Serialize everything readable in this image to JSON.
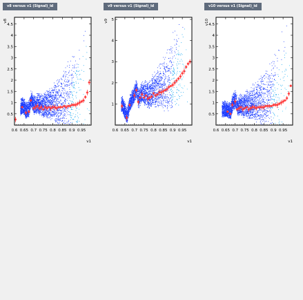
{
  "colors": {
    "background": "#f0f0f0",
    "title_bg": "#5f6b7c",
    "density_low": "#1b3cff",
    "density_mid": "#19a8f0",
    "density_high": "#2ec4ff",
    "profile_points": "#ff3b3b"
  },
  "chart_data": [
    {
      "type": "scatter",
      "title": "v8 versus v1 (Signal)_id",
      "xlabel": "v1",
      "ylabel": "v8",
      "xlim": [
        0.6,
        1.0
      ],
      "ylim": [
        0,
        4.8
      ],
      "xticks": [
        0.6,
        0.65,
        0.7,
        0.75,
        0.8,
        0.85,
        0.9,
        0.95
      ],
      "xtick_labels": [
        "0.6",
        "0.65",
        "0.7",
        "0.75",
        "0.8",
        "0.85",
        "0.9",
        "0.95"
      ],
      "yticks": [
        0.5,
        1,
        1.5,
        2,
        2.5,
        3,
        3.5,
        4,
        4.5
      ],
      "ytick_labels": [
        "0.5",
        "1",
        "1.5",
        "2",
        "2.5",
        "3",
        "3.5",
        "4",
        "4.5"
      ],
      "series": [
        {
          "kind": "profile",
          "x": [
            0.605,
            0.64,
            0.66,
            0.675,
            0.685,
            0.7,
            0.71,
            0.72,
            0.73,
            0.74,
            0.75,
            0.76,
            0.77,
            0.78,
            0.79,
            0.8,
            0.81,
            0.82,
            0.83,
            0.84,
            0.85,
            0.86,
            0.87,
            0.88,
            0.89,
            0.9,
            0.91,
            0.92,
            0.93,
            0.94,
            0.95,
            0.96,
            0.97,
            0.98,
            0.99
          ],
          "y": [
            0.25,
            0.8,
            0.55,
            0.6,
            1.1,
            0.75,
            0.8,
            0.85,
            0.75,
            0.8,
            0.7,
            0.8,
            0.75,
            0.8,
            0.75,
            0.8,
            0.8,
            0.75,
            0.8,
            0.8,
            0.8,
            0.85,
            0.8,
            0.85,
            0.85,
            0.9,
            0.9,
            0.9,
            0.95,
            1.0,
            1.05,
            1.1,
            1.25,
            1.45,
            1.9
          ]
        }
      ]
    },
    {
      "type": "scatter",
      "title": "v9 versus v1 (Signal)_id",
      "xlabel": "v1",
      "ylabel": "v9",
      "xlim": [
        0.6,
        1.0
      ],
      "ylim": [
        0,
        5.1
      ],
      "xticks": [
        0.6,
        0.65,
        0.7,
        0.75,
        0.8,
        0.85,
        0.9,
        0.95
      ],
      "xtick_labels": [
        "0.6",
        "0.65",
        "0.7",
        "0.75",
        "0.8",
        "0.85",
        "0.9",
        "0.95"
      ],
      "yticks": [
        1,
        2,
        3,
        4,
        5
      ],
      "ytick_labels": [
        "1",
        "2",
        "3",
        "4",
        "5"
      ],
      "series": [
        {
          "kind": "profile",
          "x": [
            0.635,
            0.66,
            0.675,
            0.7,
            0.71,
            0.72,
            0.73,
            0.74,
            0.75,
            0.76,
            0.77,
            0.78,
            0.79,
            0.8,
            0.81,
            0.82,
            0.83,
            0.84,
            0.85,
            0.86,
            0.87,
            0.88,
            0.89,
            0.9,
            0.91,
            0.92,
            0.93,
            0.94,
            0.95,
            0.96,
            0.97,
            0.98,
            0.99
          ],
          "y": [
            0.9,
            0.35,
            0.95,
            1.4,
            1.65,
            1.1,
            1.3,
            1.45,
            1.3,
            1.4,
            1.25,
            1.3,
            1.35,
            1.5,
            1.4,
            1.45,
            1.55,
            1.55,
            1.6,
            1.65,
            1.7,
            1.8,
            1.85,
            1.9,
            2.0,
            2.1,
            2.2,
            2.3,
            2.45,
            2.55,
            2.75,
            2.9,
            3.0
          ]
        }
      ]
    },
    {
      "type": "scatter",
      "title": "v10 versus v1 (Signal)_id",
      "xlabel": "v1",
      "ylabel": "v10",
      "xlim": [
        0.6,
        1.0
      ],
      "ylim": [
        0,
        4.8
      ],
      "xticks": [
        0.6,
        0.65,
        0.7,
        0.75,
        0.8,
        0.85,
        0.9,
        0.95
      ],
      "xtick_labels": [
        "0.6",
        "0.65",
        "0.7",
        "0.75",
        "0.8",
        "0.85",
        "0.9",
        "0.95"
      ],
      "yticks": [
        0.5,
        1,
        1.5,
        2,
        2.5,
        3,
        3.5,
        4,
        4.5
      ],
      "ytick_labels": [
        "0.5",
        "1",
        "1.5",
        "2",
        "2.5",
        "3",
        "3.5",
        "4",
        "4.5"
      ],
      "series": [
        {
          "kind": "profile",
          "x": [
            0.66,
            0.675,
            0.685,
            0.7,
            0.71,
            0.72,
            0.73,
            0.74,
            0.75,
            0.76,
            0.77,
            0.78,
            0.79,
            0.8,
            0.81,
            0.82,
            0.83,
            0.84,
            0.85,
            0.86,
            0.87,
            0.88,
            0.89,
            0.9,
            0.91,
            0.92,
            0.93,
            0.94,
            0.95,
            0.96,
            0.97,
            0.98,
            0.99
          ],
          "y": [
            0.6,
            0.5,
            0.9,
            1.05,
            0.7,
            0.75,
            0.8,
            0.7,
            0.75,
            0.8,
            0.7,
            0.75,
            0.8,
            0.8,
            0.75,
            0.8,
            0.8,
            0.8,
            0.8,
            0.85,
            0.85,
            0.85,
            0.85,
            0.9,
            0.9,
            0.9,
            0.95,
            1.0,
            1.05,
            1.1,
            1.2,
            1.4,
            1.75
          ]
        }
      ]
    }
  ]
}
